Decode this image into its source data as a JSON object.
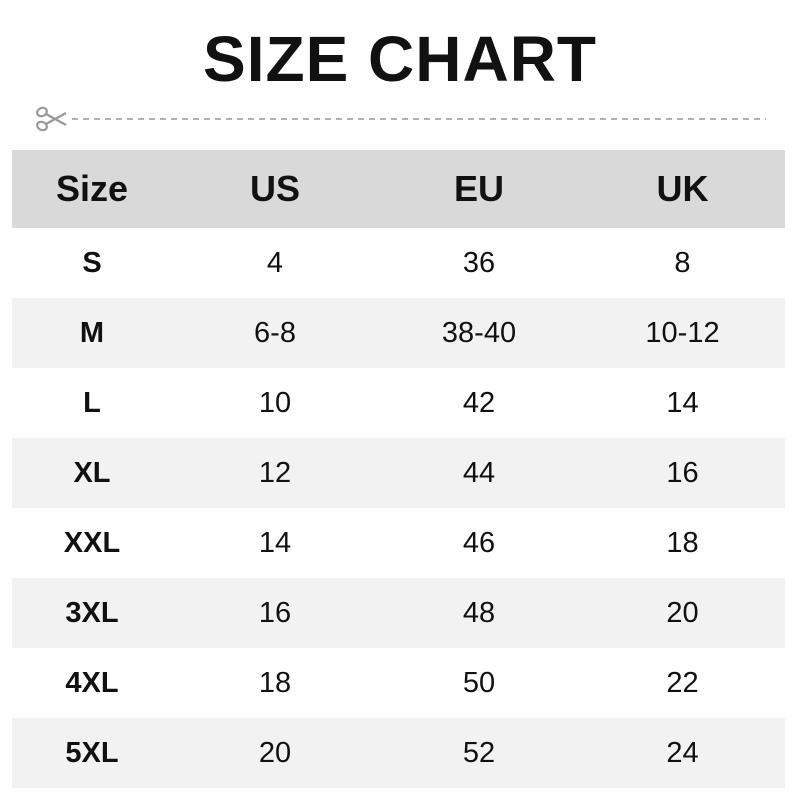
{
  "title": "SIZE CHART",
  "divider_icon": "scissors-icon",
  "colors": {
    "header_bg": "#d9d9d9",
    "alt_row_bg": "#f2f2f2",
    "divider": "#999999"
  },
  "table": {
    "headers": [
      "Size",
      "US",
      "EU",
      "UK"
    ],
    "rows": [
      [
        "S",
        "4",
        "36",
        "8"
      ],
      [
        "M",
        "6-8",
        "38-40",
        "10-12"
      ],
      [
        "L",
        "10",
        "42",
        "14"
      ],
      [
        "XL",
        "12",
        "44",
        "16"
      ],
      [
        "XXL",
        "14",
        "46",
        "18"
      ],
      [
        "3XL",
        "16",
        "48",
        "20"
      ],
      [
        "4XL",
        "18",
        "50",
        "22"
      ],
      [
        "5XL",
        "20",
        "52",
        "24"
      ]
    ]
  }
}
